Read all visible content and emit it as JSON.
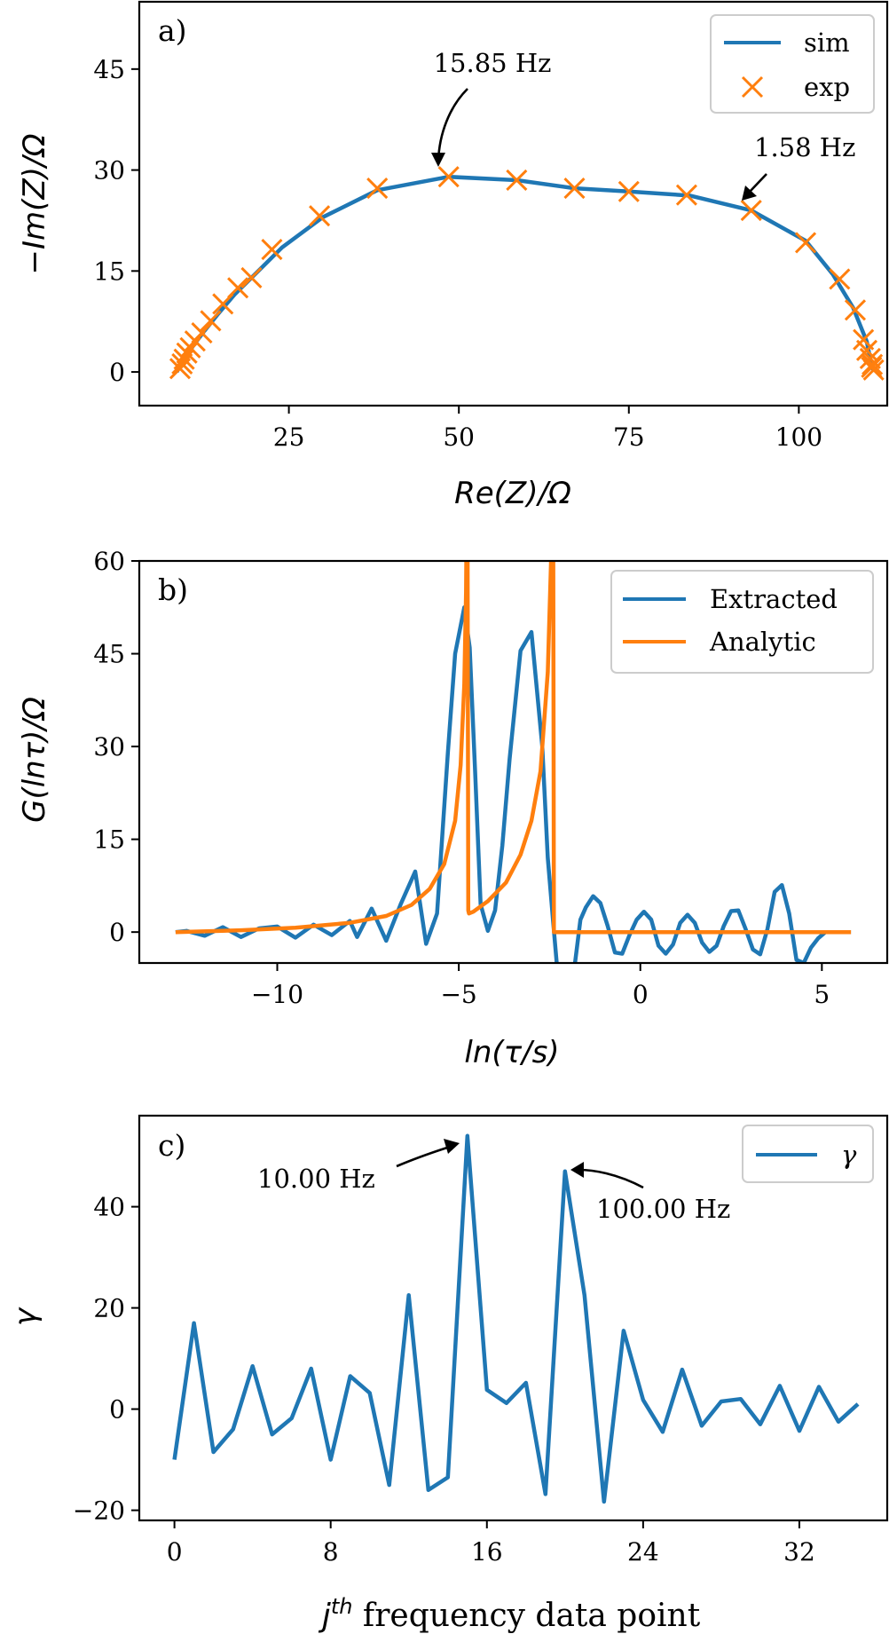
{
  "colors": {
    "blue": "#1f77b4",
    "orange": "#ff7f0e"
  },
  "chart_data": [
    {
      "panel": "a)",
      "type": "scatter",
      "xlabel": "Re(Z)/Ω",
      "ylabel": "−Im(Z)/Ω",
      "xlim": [
        3,
        113
      ],
      "ylim": [
        -5,
        55
      ],
      "xticks": [
        25,
        50,
        75,
        100
      ],
      "yticks": [
        0,
        15,
        30,
        45
      ],
      "legend_position": "top-right",
      "grid": false,
      "series": [
        {
          "name": "sim",
          "style": "line",
          "x": [
            8.5,
            9,
            10,
            11,
            12.5,
            14.5,
            17,
            20,
            24,
            30,
            38,
            48.5,
            58.5,
            67,
            75,
            84,
            93,
            101,
            105,
            108,
            110,
            110.5,
            110.8,
            111
          ],
          "y": [
            0,
            1,
            2.5,
            4,
            6,
            8.5,
            11.5,
            14.5,
            18.5,
            23,
            27,
            29,
            28.5,
            27.3,
            26.8,
            26.2,
            24,
            19.5,
            14.5,
            9.5,
            4.5,
            2,
            0.8,
            0
          ]
        },
        {
          "name": "exp",
          "style": "x",
          "x": [
            9,
            9.3,
            9.6,
            10,
            10.5,
            11.2,
            12.2,
            13.5,
            15.3,
            17.5,
            19.5,
            22.5,
            29.5,
            38,
            48.5,
            58.5,
            67,
            75,
            83.5,
            93,
            101,
            106,
            108.3,
            109.5,
            110,
            110.5,
            110.8,
            111,
            110.7
          ],
          "y": [
            0.5,
            1.2,
            1.9,
            2.8,
            3.6,
            4.6,
            5.8,
            7.6,
            10.1,
            12.5,
            14,
            18.2,
            23.2,
            27.3,
            29,
            28.5,
            27.3,
            26.8,
            26.3,
            24,
            19.2,
            13.8,
            9.2,
            4.8,
            3.2,
            2,
            1.1,
            0.3,
            0.7
          ]
        }
      ],
      "annotations": [
        {
          "text": "15.85 Hz",
          "x": 48.5,
          "y": 29
        },
        {
          "text": "1.58 Hz",
          "x": 93,
          "y": 24
        }
      ]
    },
    {
      "panel": "b)",
      "type": "line",
      "xlabel": "ln(τ/s)",
      "ylabel": "G(lnτ)/Ω",
      "xlim": [
        -13.8,
        6.8
      ],
      "ylim": [
        -5,
        60
      ],
      "xticks": [
        -10,
        -5,
        0,
        5
      ],
      "yticks": [
        0,
        15,
        30,
        45,
        60
      ],
      "legend_position": "top-right",
      "grid": false,
      "series": [
        {
          "name": "Extracted",
          "x": [
            -12.8,
            -12.5,
            -12,
            -11.5,
            -11,
            -10.5,
            -10,
            -9.5,
            -9,
            -8.5,
            -8,
            -7.8,
            -7.4,
            -7,
            -6.6,
            -6.2,
            -5.9,
            -5.6,
            -5.3,
            -5.1,
            -4.85,
            -4.7,
            -4.55,
            -4.4,
            -4.2,
            -4,
            -3.8,
            -3.6,
            -3.3,
            -3,
            -2.7,
            -2.55,
            -2.4,
            -2.2,
            -2,
            -1.8,
            -1.65,
            -1.5,
            -1.3,
            -1.1,
            -0.9,
            -0.7,
            -0.5,
            -0.3,
            -0.1,
            0.1,
            0.3,
            0.5,
            0.7,
            0.9,
            1.1,
            1.3,
            1.5,
            1.7,
            1.9,
            2.1,
            2.3,
            2.5,
            2.7,
            2.9,
            3.1,
            3.3,
            3.5,
            3.7,
            3.9,
            4.1,
            4.3,
            4.5,
            4.7,
            4.9,
            5.1,
            5.3,
            5.5,
            5.8
          ],
          "y": [
            0,
            0.2,
            -0.6,
            0.8,
            -0.8,
            0.6,
            0.9,
            -0.9,
            1.2,
            -0.5,
            1.8,
            -0.8,
            3.8,
            -1.4,
            4.5,
            9.8,
            -1.9,
            3,
            29,
            45,
            52.5,
            46,
            26,
            4.5,
            0.2,
            3.5,
            14,
            28,
            45.5,
            48.5,
            30,
            12,
            1.6,
            -12,
            -24,
            -5,
            2,
            4,
            5.8,
            4.7,
            1,
            -3.3,
            -3.5,
            -0.5,
            2,
            3.3,
            2,
            -2.2,
            -3.5,
            -2,
            1.5,
            2.8,
            1.5,
            -1.7,
            -3.2,
            -2.2,
            1,
            3.4,
            3.5,
            0.5,
            -2.8,
            -3.6,
            0.5,
            6.5,
            7.6,
            3,
            -4.5,
            -5,
            -2.5,
            -1,
            0,
            0,
            0,
            0
          ]
        },
        {
          "name": "Analytic",
          "x": [
            -12.8,
            -11,
            -9.5,
            -8,
            -7,
            -6.3,
            -5.8,
            -5.4,
            -5.1,
            -4.95,
            -4.85,
            -4.8,
            -4.78,
            -4.76,
            -4.74,
            -4.72,
            -4.6,
            -4.2,
            -3.7,
            -3.3,
            -3,
            -2.75,
            -2.55,
            -2.46,
            -2.42,
            -2.4,
            -2.38,
            -2.36,
            -2.3,
            -1,
            1,
            3,
            5.8
          ],
          "y": [
            0,
            0.3,
            0.7,
            1.5,
            2.6,
            4.4,
            7,
            11,
            18,
            27,
            40,
            55,
            70,
            70,
            3.5,
            3,
            3.3,
            5,
            8,
            12.5,
            18,
            26,
            42,
            60,
            70,
            70,
            0,
            0,
            0,
            0,
            0,
            0,
            0
          ]
        }
      ]
    },
    {
      "panel": "c)",
      "type": "line",
      "xlabel": "jth frequency data point",
      "ylabel": "γ",
      "xlim": [
        -1.8,
        36.5
      ],
      "ylim": [
        -22,
        58
      ],
      "xticks": [
        0,
        8,
        16,
        24,
        32
      ],
      "yticks": [
        -20,
        0,
        20,
        40
      ],
      "legend_position": "top-right",
      "grid": false,
      "series": [
        {
          "name": "γ",
          "x": [
            0,
            1,
            2,
            3,
            4,
            5,
            6,
            7,
            8,
            9,
            10,
            11,
            12,
            13,
            14,
            15,
            16,
            17,
            18,
            19,
            20,
            21,
            22,
            23,
            24,
            25,
            26,
            27,
            28,
            29,
            30,
            31,
            32,
            33,
            34,
            35
          ],
          "y": [
            -10,
            17,
            -8.5,
            -4,
            8.5,
            -5,
            -1.8,
            8,
            -10,
            6.5,
            3.2,
            -15,
            22.5,
            -16,
            -13.5,
            54,
            3.8,
            1.2,
            5.2,
            -16.8,
            47,
            22.5,
            -18.3,
            15.5,
            1.8,
            -4.5,
            7.8,
            -3.3,
            1.5,
            2,
            -3,
            4.6,
            -4.3,
            4.4,
            -2.5,
            1
          ]
        }
      ],
      "annotations": [
        {
          "text": "10.00 Hz",
          "x": 15,
          "y": 54
        },
        {
          "text": "100.00 Hz",
          "x": 20,
          "y": 47
        }
      ]
    }
  ]
}
